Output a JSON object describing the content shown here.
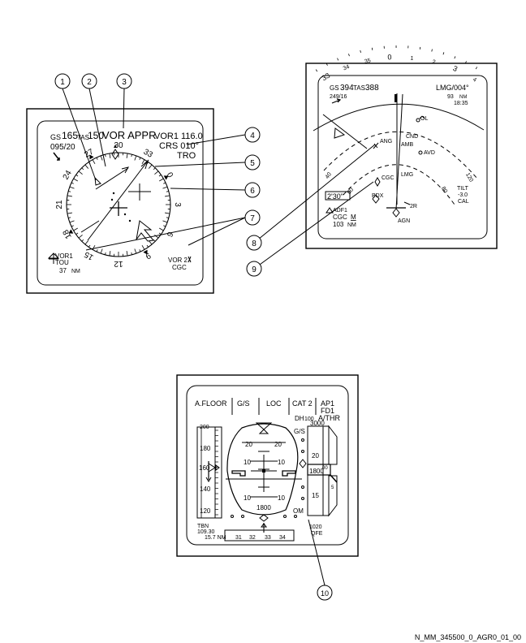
{
  "callouts": [
    "1",
    "2",
    "3",
    "4",
    "5",
    "6",
    "7",
    "8",
    "9",
    "10"
  ],
  "nd_rose": {
    "gs_label": "GS",
    "gs_value": "165",
    "tas_label": "TAS",
    "tas_value": "150",
    "wind": "095/20",
    "mode": "VOR APPR",
    "vor_ident": "VOR1 116.0",
    "crs": "CRS 010°",
    "station": "TRO",
    "heading_labels": [
      "24",
      "27",
      "30",
      "33",
      "0",
      "3",
      "6",
      "9",
      "12",
      "15",
      "18",
      "21"
    ],
    "vor1_label": "VOR1",
    "vor1_ident": "TOU",
    "vor1_dist": "37",
    "vor1_unit": "NM",
    "vor2_label": "VOR 2",
    "vor2_ident": "CGC"
  },
  "nd_arc": {
    "gs_label": "GS",
    "gs_value": "394",
    "tas_label": "TAS",
    "tas_value": "388",
    "wind": "249/16",
    "wpt": "LMG/004°",
    "wpt_dist": "93",
    "wpt_unit": "NM",
    "wpt_time": "18:35",
    "heading_labels": [
      "33",
      "34",
      "35",
      "0",
      "1",
      "2",
      "3",
      "4"
    ],
    "waypoints": [
      "OL",
      "CND",
      "AMB",
      "ANG",
      "AVD",
      "CGC",
      "LMG",
      "BDX",
      "AGN",
      "2R"
    ],
    "range_inner": "40",
    "range_outer": "80",
    "range_side": "120",
    "time": "2'30\"",
    "adf": "ADF1",
    "adf_ident": "CGC",
    "adf_mode": "M",
    "adf_dist": "103",
    "adf_unit": "NM",
    "tilt_label": "TILT",
    "tilt_value": "-3.0",
    "cal": "CAL"
  },
  "pfd": {
    "fma": [
      "A.FLOOR",
      "G/S",
      "LOC",
      "CAT 2",
      "AP1",
      "FD1",
      "A/THR"
    ],
    "dh_label": "DH",
    "dh_value": "100",
    "speed_ticks": [
      "200",
      "180",
      "160",
      "140",
      "120"
    ],
    "pitch_labels": [
      "20",
      "20",
      "10",
      "10",
      "10",
      "10"
    ],
    "radio_alt": "1800",
    "alt_ticks": [
      "3000",
      "20",
      "00",
      "15"
    ],
    "alt_current": "1800",
    "gs_label": "G/S",
    "vs_value": "5",
    "ils_freq_label": "TBN",
    "ils_freq": "109.30",
    "ils_dist": "15.7 NM",
    "heading_ticks": [
      "31",
      "32",
      "33",
      "34"
    ],
    "marker": "OM",
    "baro": "1020",
    "baro_mode": "QFE"
  },
  "doc_ref": "N_MM_345500_0_AGR0_01_00"
}
